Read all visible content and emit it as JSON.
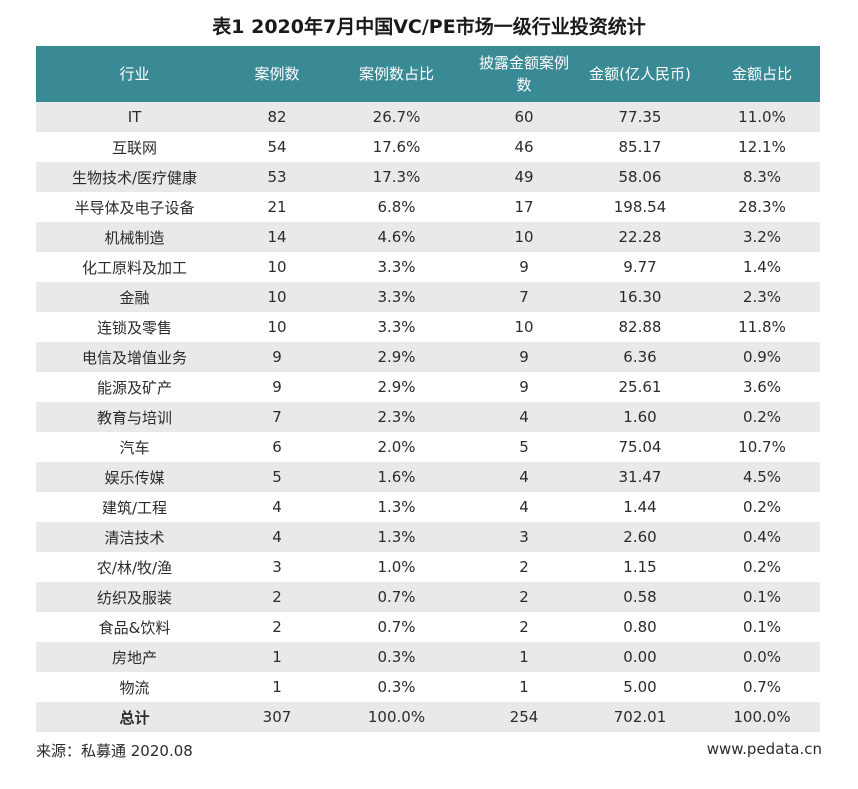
{
  "title": "表1  2020年7月中国VC/PE市场一级行业投资统计",
  "headers": {
    "industry": "行业",
    "cases": "案例数",
    "case_ratio": "案例数占比",
    "disclosed_cases": "披露金额案例数",
    "amount": "金额(亿人民币)",
    "amount_ratio": "金额占比"
  },
  "rows": [
    {
      "industry": "IT",
      "cases": "82",
      "case_ratio": "26.7%",
      "disclosed_cases": "60",
      "amount": "77.35",
      "amount_ratio": "11.0%"
    },
    {
      "industry": "互联网",
      "cases": "54",
      "case_ratio": "17.6%",
      "disclosed_cases": "46",
      "amount": "85.17",
      "amount_ratio": "12.1%"
    },
    {
      "industry": "生物技术/医疗健康",
      "cases": "53",
      "case_ratio": "17.3%",
      "disclosed_cases": "49",
      "amount": "58.06",
      "amount_ratio": "8.3%"
    },
    {
      "industry": "半导体及电子设备",
      "cases": "21",
      "case_ratio": "6.8%",
      "disclosed_cases": "17",
      "amount": "198.54",
      "amount_ratio": "28.3%"
    },
    {
      "industry": "机械制造",
      "cases": "14",
      "case_ratio": "4.6%",
      "disclosed_cases": "10",
      "amount": "22.28",
      "amount_ratio": "3.2%"
    },
    {
      "industry": "化工原料及加工",
      "cases": "10",
      "case_ratio": "3.3%",
      "disclosed_cases": "9",
      "amount": "9.77",
      "amount_ratio": "1.4%"
    },
    {
      "industry": "金融",
      "cases": "10",
      "case_ratio": "3.3%",
      "disclosed_cases": "7",
      "amount": "16.30",
      "amount_ratio": "2.3%"
    },
    {
      "industry": "连锁及零售",
      "cases": "10",
      "case_ratio": "3.3%",
      "disclosed_cases": "10",
      "amount": "82.88",
      "amount_ratio": "11.8%"
    },
    {
      "industry": "电信及增值业务",
      "cases": "9",
      "case_ratio": "2.9%",
      "disclosed_cases": "9",
      "amount": "6.36",
      "amount_ratio": "0.9%"
    },
    {
      "industry": "能源及矿产",
      "cases": "9",
      "case_ratio": "2.9%",
      "disclosed_cases": "9",
      "amount": "25.61",
      "amount_ratio": "3.6%"
    },
    {
      "industry": "教育与培训",
      "cases": "7",
      "case_ratio": "2.3%",
      "disclosed_cases": "4",
      "amount": "1.60",
      "amount_ratio": "0.2%"
    },
    {
      "industry": "汽车",
      "cases": "6",
      "case_ratio": "2.0%",
      "disclosed_cases": "5",
      "amount": "75.04",
      "amount_ratio": "10.7%"
    },
    {
      "industry": "娱乐传媒",
      "cases": "5",
      "case_ratio": "1.6%",
      "disclosed_cases": "4",
      "amount": "31.47",
      "amount_ratio": "4.5%"
    },
    {
      "industry": "建筑/工程",
      "cases": "4",
      "case_ratio": "1.3%",
      "disclosed_cases": "4",
      "amount": "1.44",
      "amount_ratio": "0.2%"
    },
    {
      "industry": "清洁技术",
      "cases": "4",
      "case_ratio": "1.3%",
      "disclosed_cases": "3",
      "amount": "2.60",
      "amount_ratio": "0.4%"
    },
    {
      "industry": "农/林/牧/渔",
      "cases": "3",
      "case_ratio": "1.0%",
      "disclosed_cases": "2",
      "amount": "1.15",
      "amount_ratio": "0.2%"
    },
    {
      "industry": "纺织及服装",
      "cases": "2",
      "case_ratio": "0.7%",
      "disclosed_cases": "2",
      "amount": "0.58",
      "amount_ratio": "0.1%"
    },
    {
      "industry": "食品&饮料",
      "cases": "2",
      "case_ratio": "0.7%",
      "disclosed_cases": "2",
      "amount": "0.80",
      "amount_ratio": "0.1%"
    },
    {
      "industry": "房地产",
      "cases": "1",
      "case_ratio": "0.3%",
      "disclosed_cases": "1",
      "amount": "0.00",
      "amount_ratio": "0.0%"
    },
    {
      "industry": "物流",
      "cases": "1",
      "case_ratio": "0.3%",
      "disclosed_cases": "1",
      "amount": "5.00",
      "amount_ratio": "0.7%"
    }
  ],
  "total": {
    "industry": "总计",
    "cases": "307",
    "case_ratio": "100.0%",
    "disclosed_cases": "254",
    "amount": "702.01",
    "amount_ratio": "100.0%"
  },
  "footer": {
    "source": "来源：私募通 2020.08",
    "website": "www.pedata.cn"
  },
  "colors": {
    "header_bg": "#3a8a95",
    "stripe": "#e9e9e9"
  }
}
